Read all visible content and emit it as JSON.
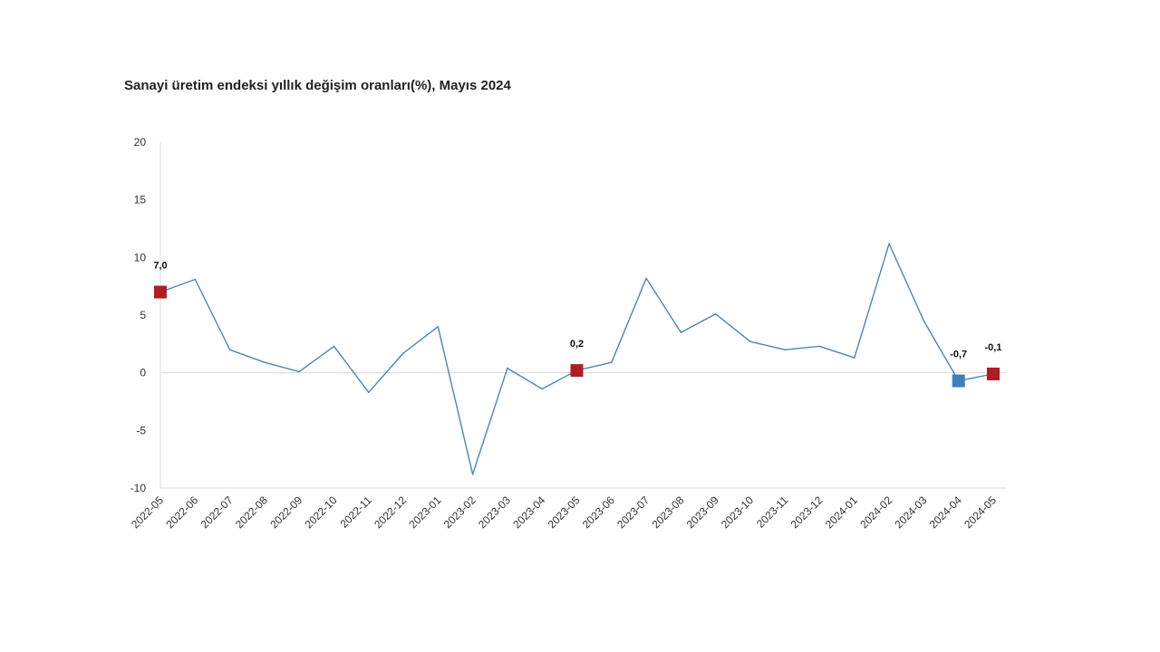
{
  "chart_data": {
    "type": "line",
    "title": "Sanayi üretim endeksi yıllık değişim oranları(%), Mayıs 2024",
    "xlabel": "",
    "ylabel": "",
    "ylim": [
      -10,
      20
    ],
    "yticks": [
      "-10",
      "-5",
      "0",
      "5",
      "10",
      "15",
      "20"
    ],
    "yticks_values": [
      -10,
      -5,
      0,
      5,
      10,
      15,
      20
    ],
    "grid": false,
    "categories": [
      "2022-05",
      "2022-06",
      "2022-07",
      "2022-08",
      "2022-09",
      "2022-10",
      "2022-11",
      "2022-12",
      "2023-01",
      "2023-02",
      "2023-03",
      "2023-04",
      "2023-05",
      "2023-06",
      "2023-07",
      "2023-08",
      "2023-09",
      "2023-10",
      "2023-11",
      "2023-12",
      "2024-01",
      "2024-02",
      "2024-03",
      "2024-04",
      "2024-05"
    ],
    "series": [
      {
        "values": [
          7.0,
          8.1,
          2.0,
          0.9,
          0.1,
          2.3,
          -1.7,
          1.7,
          4.0,
          -8.8,
          0.4,
          -1.4,
          0.2,
          0.9,
          8.2,
          3.5,
          5.1,
          2.7,
          2.0,
          2.3,
          1.3,
          11.2,
          4.5,
          -0.7,
          -0.1
        ],
        "color": "#4a86b8"
      }
    ],
    "highlights": [
      {
        "index": 0,
        "label": "7,0",
        "color": "#b01c24"
      },
      {
        "index": 12,
        "label": "0,2",
        "color": "#b01c24"
      },
      {
        "index": 23,
        "label": "-0,7",
        "color": "#3d7fbf"
      },
      {
        "index": 24,
        "label": "-0,1",
        "color": "#b01c24"
      }
    ],
    "colors": {
      "line": "#4a86b8",
      "axis": "#d9d9d9",
      "zero_line": "#d9d9d9"
    }
  }
}
